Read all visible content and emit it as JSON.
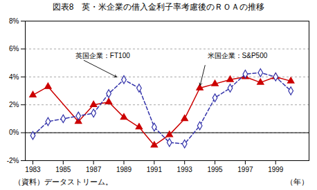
{
  "chart_data": {
    "type": "line",
    "title": "図表8　英・米企業の借入金利子率考慮後のＲＯＡの推移",
    "xlabel": "（年）",
    "note": "（資料）データストリーム。",
    "series": [
      {
        "color": "#cc0000",
        "marker": "triangle",
        "line_style": "solid",
        "x": [
          1983,
          1984,
          1986,
          1987,
          1988,
          1989,
          1990,
          1991,
          1992,
          1993,
          1994,
          1995,
          1996,
          1997,
          1998,
          1999,
          2000
        ],
        "values": [
          2.7,
          3.3,
          0.8,
          2.0,
          2.2,
          1.1,
          0.4,
          -0.9,
          -0.15,
          1.0,
          3.2,
          3.5,
          3.8,
          4.0,
          3.6,
          4.0,
          3.7
        ]
      },
      {
        "color": "#3333aa",
        "marker": "open_diamond",
        "line_style": "dashed",
        "x": [
          1983,
          1984,
          1985,
          1986,
          1987,
          1988,
          1989,
          1990,
          1991,
          1992,
          1993,
          1994,
          1995,
          1996,
          1997,
          1998,
          1999,
          2000
        ],
        "values": [
          -0.2,
          0.8,
          1.0,
          1.2,
          1.4,
          2.8,
          3.8,
          3.2,
          0.4,
          -0.7,
          -0.8,
          0.5,
          2.5,
          3.2,
          4.2,
          4.3,
          4.0,
          3.0
        ]
      }
    ],
    "annotations": [
      {
        "text": "英国企業：FT100",
        "x": 1988.6,
        "y": 3.95,
        "text_x": 1985.8,
        "text_y": 5.5
      },
      {
        "text": "米国企業：S&P500",
        "x": 1994.0,
        "y": 3.3,
        "text_x": 1994.5,
        "text_y": 5.5
      }
    ],
    "xlim": [
      1982.5,
      2001.2
    ],
    "xticks": [
      1983,
      1985,
      1987,
      1989,
      1991,
      1993,
      1995,
      1997,
      1999
    ],
    "ylim": [
      -2,
      8
    ],
    "yticks": [
      {
        "value": -2,
        "label": "-2%"
      },
      {
        "value": 0,
        "label": "0%"
      },
      {
        "value": 2,
        "label": "2%"
      },
      {
        "value": 4,
        "label": "4%"
      },
      {
        "value": 6,
        "label": "6%"
      },
      {
        "value": 8,
        "label": "8%"
      }
    ],
    "grid": true
  }
}
